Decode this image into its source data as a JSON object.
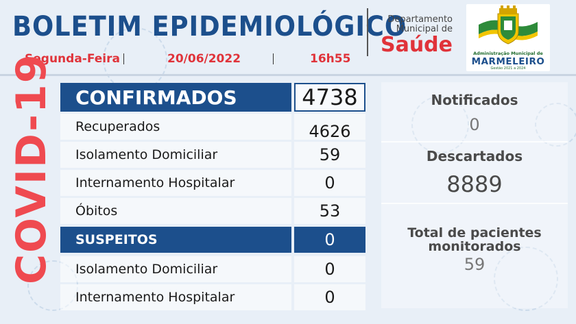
{
  "header": {
    "title": "BOLETIM EPIDEMIOLÓGICO",
    "weekday": "Segunda-Feira",
    "date": "20/06/2022",
    "time": "16h55",
    "dept_line1": "Departamento",
    "dept_line2": "Municipal de",
    "dept_saude": "Saúde",
    "logo_admin": "Administração Municipal de",
    "logo_name": "MARMELEIRO",
    "logo_gestao": "Gestão 2021 a 2024"
  },
  "side_label": "COVID-19",
  "confirmados": {
    "label": "CONFIRMADOS",
    "value": "4738",
    "rows": [
      {
        "label": "Recuperados",
        "value": "4626"
      },
      {
        "label": "Isolamento Domiciliar",
        "value": "59"
      },
      {
        "label": "Internamento Hospitalar",
        "value": "0"
      },
      {
        "label": "Óbitos",
        "value": "53"
      }
    ]
  },
  "suspeitos": {
    "label": "SUSPEITOS",
    "value": "0",
    "rows": [
      {
        "label": "Isolamento Domiciliar",
        "value": "0"
      },
      {
        "label": "Internamento Hospitalar",
        "value": "0"
      }
    ]
  },
  "panel": {
    "notificados_label": "Notificados",
    "notificados_value": "0",
    "descartados_label": "Descartados",
    "descartados_value": "8889",
    "monitorados_label_1": "Total de pacientes",
    "monitorados_label_2": "monitorados",
    "monitorados_value": "59"
  },
  "colors": {
    "primary_blue": "#1c4f8c",
    "accent_red": "#e0333a",
    "background": "#e8eff7"
  }
}
